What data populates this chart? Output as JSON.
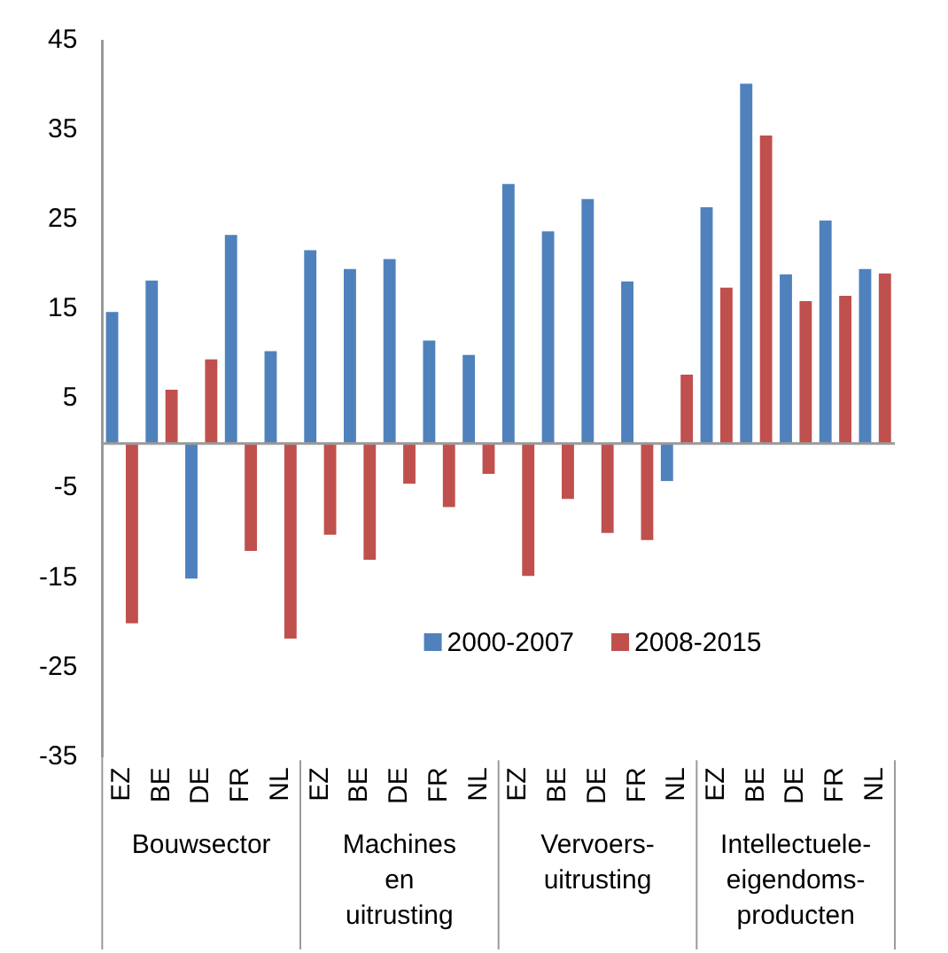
{
  "chart_data": {
    "type": "bar",
    "categories": [
      "EZ",
      "BE",
      "DE",
      "FR",
      "NL",
      "EZ",
      "BE",
      "DE",
      "FR",
      "NL",
      "EZ",
      "BE",
      "DE",
      "FR",
      "NL",
      "EZ",
      "BE",
      "DE",
      "FR",
      "NL"
    ],
    "series": [
      {
        "name": "2000-2007",
        "color": "#4f81bd",
        "values": [
          14.7,
          18.2,
          -15.1,
          23.3,
          10.3,
          21.6,
          19.5,
          20.6,
          11.5,
          9.9,
          29.0,
          23.7,
          27.3,
          18.1,
          -4.2,
          26.4,
          40.2,
          18.9,
          24.9,
          19.5
        ]
      },
      {
        "name": "2008-2015",
        "color": "#c0504d",
        "values": [
          -20.1,
          6.0,
          9.4,
          -12.0,
          -21.8,
          -10.2,
          -13.0,
          -4.5,
          -7.1,
          -3.4,
          -14.8,
          -6.2,
          -10.0,
          -10.8,
          7.7,
          17.4,
          34.4,
          15.9,
          16.5,
          19.0
        ]
      }
    ],
    "annotations": [
      "Bouwsector",
      "Machines en uitrusting",
      "Vervoers-uitrusting",
      "Intellectuele-eigendoms-producten"
    ],
    "ylim": [
      -35,
      45
    ],
    "yticks": [
      -35,
      -25,
      -15,
      -5,
      5,
      15,
      25,
      35,
      45
    ],
    "grid": false,
    "legend": "bottom"
  }
}
